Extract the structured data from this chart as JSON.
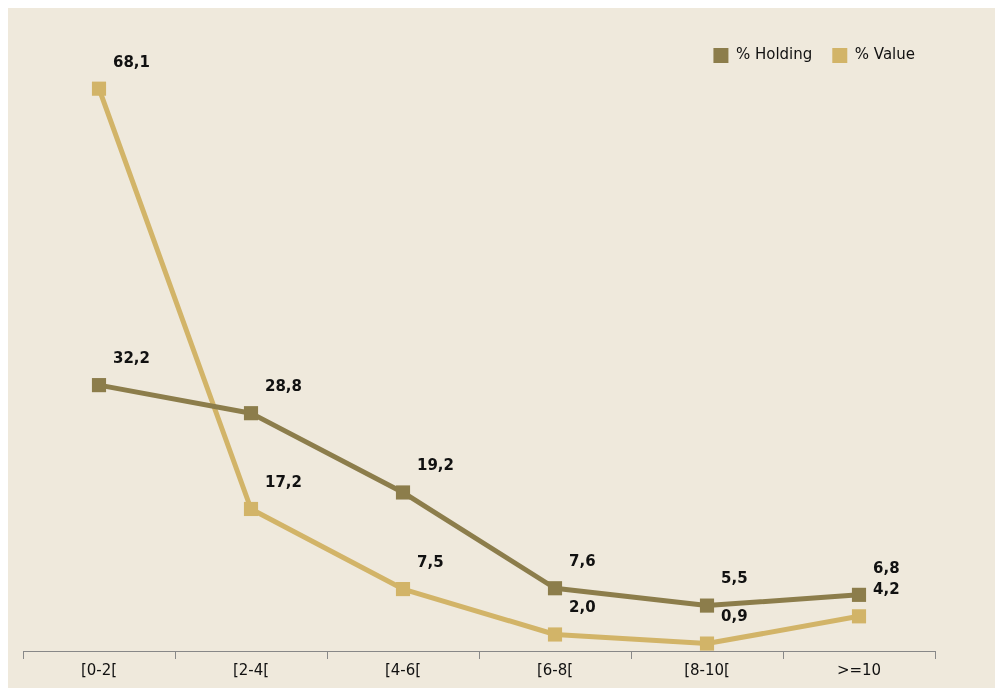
{
  "chart_data": {
    "type": "line",
    "categories": [
      "[0-2[",
      "[2-4[",
      "[4-6[",
      "[6-8[",
      "[8-10[",
      ">=10"
    ],
    "series": [
      {
        "name": "% Holding",
        "color": "#8c7d4b",
        "values": [
          32.2,
          28.8,
          19.2,
          7.6,
          5.5,
          6.8
        ],
        "value_labels": [
          "32,2",
          "28,8",
          "19,2",
          "7,6",
          "5,5",
          "6,8"
        ]
      },
      {
        "name": "% Value",
        "color": "#d2b468",
        "values": [
          68.1,
          17.2,
          7.5,
          2.0,
          0.9,
          4.2
        ],
        "value_labels": [
          "68,1",
          "17,2",
          "7,5",
          "2,0",
          "0,9",
          "4,2"
        ]
      }
    ],
    "marker": "square",
    "legend": "top right",
    "grid": false
  }
}
